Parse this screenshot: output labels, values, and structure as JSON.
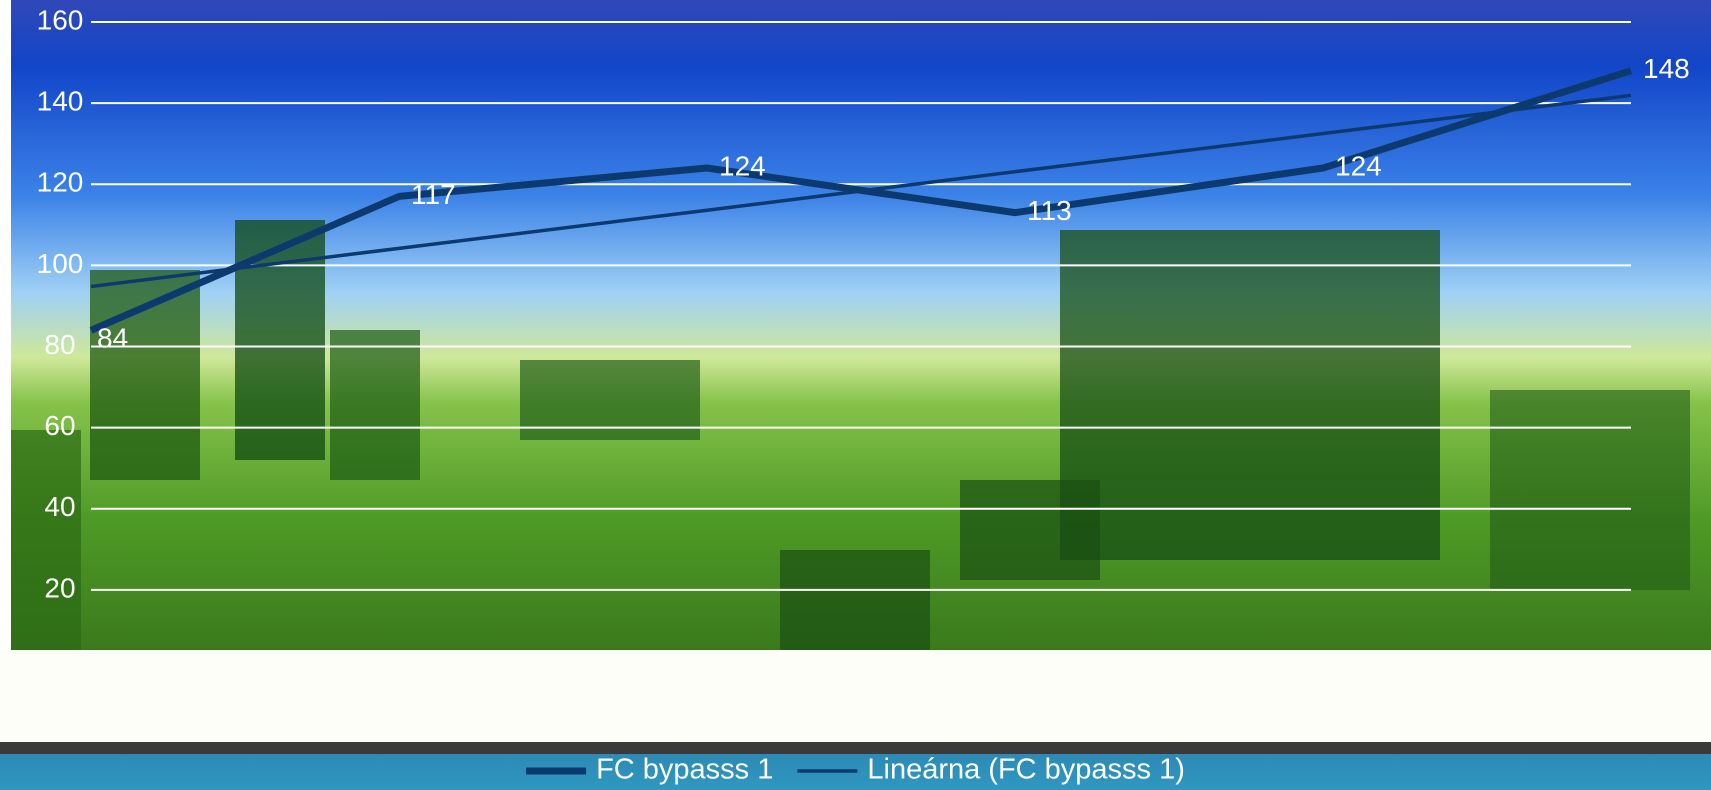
{
  "chart_data": {
    "type": "line",
    "categories": [
      null,
      null,
      null,
      null,
      null,
      null
    ],
    "series": [
      {
        "name": "FC bypasss 1",
        "color": "#0d3a6e",
        "values": [
          84,
          117,
          124,
          113,
          124,
          148
        ]
      },
      {
        "name": "Lineárna (FC bypasss 1)",
        "color": "#0d3a6e",
        "values": [
          94.8,
          104.2,
          113.6,
          123.1,
          132.5,
          141.9
        ]
      }
    ],
    "ylim": [
      0,
      160
    ],
    "yticks": [
      0,
      20,
      40,
      60,
      80,
      100,
      120,
      140,
      160
    ],
    "grid": true,
    "legend": "bottom"
  }
}
